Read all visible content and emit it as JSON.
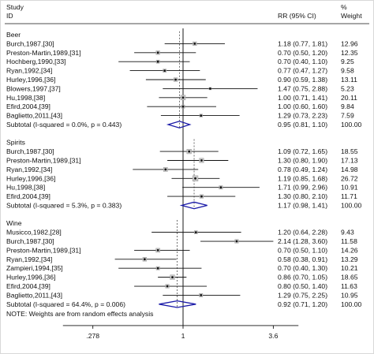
{
  "chart_data": {
    "type": "forest",
    "header": {
      "study_label": "Study",
      "id_label": "ID",
      "effect_label": "RR (95% CI)",
      "weight_label_top": "%",
      "weight_label": "Weight"
    },
    "x_ticks": [
      {
        "value": 0.278,
        "label": ".278"
      },
      {
        "value": 1,
        "label": "1"
      },
      {
        "value": 3.6,
        "label": "3.6"
      }
    ],
    "xlim": [
      0.17,
      5.5
    ],
    "scale": "log",
    "groups": [
      {
        "name": "Beer",
        "studies": [
          {
            "label": "Burch,1987,[30]",
            "rr": 1.18,
            "lo": 0.77,
            "hi": 1.81,
            "ci_text": "1.18 (0.77, 1.81)",
            "weight": 12.96,
            "weight_text": "12.96"
          },
          {
            "label": "Preston-Martin,1989,[31]",
            "rr": 0.7,
            "lo": 0.5,
            "hi": 1.2,
            "ci_text": "0.70 (0.50, 1.20)",
            "weight": 12.35,
            "weight_text": "12.35"
          },
          {
            "label": "Hochberg,1990,[33]",
            "rr": 0.7,
            "lo": 0.4,
            "hi": 1.1,
            "ci_text": "0.70 (0.40, 1.10)",
            "weight": 9.25,
            "weight_text": "9.25"
          },
          {
            "label": "Ryan,1992,[34]",
            "rr": 0.77,
            "lo": 0.47,
            "hi": 1.27,
            "ci_text": "0.77 (0.47, 1.27)",
            "weight": 9.58,
            "weight_text": "9.58"
          },
          {
            "label": "Hurley,1996,[36]",
            "rr": 0.9,
            "lo": 0.59,
            "hi": 1.38,
            "ci_text": "0.90 (0.59, 1.38)",
            "weight": 13.11,
            "weight_text": "13.11"
          },
          {
            "label": "Blowers,1997,[37]",
            "rr": 1.47,
            "lo": 0.75,
            "hi": 2.88,
            "ci_text": "1.47 (0.75, 2.88)",
            "weight": 5.23,
            "weight_text": "5.23"
          },
          {
            "label": "Hu,1998,[38]",
            "rr": 1.0,
            "lo": 0.71,
            "hi": 1.41,
            "ci_text": "1.00 (0.71, 1.41)",
            "weight": 20.11,
            "weight_text": "20.11"
          },
          {
            "label": "Efird,2004,[39]",
            "rr": 1.0,
            "lo": 0.6,
            "hi": 1.6,
            "ci_text": "1.00 (0.60, 1.60)",
            "weight": 9.84,
            "weight_text": "9.84"
          },
          {
            "label": "Baglietto,2011,[43]",
            "rr": 1.29,
            "lo": 0.73,
            "hi": 2.23,
            "ci_text": "1.29 (0.73, 2.23)",
            "weight": 7.59,
            "weight_text": "7.59"
          }
        ],
        "subtotal": {
          "label": "Subtotal  (I-squared = 0.0%, p = 0.443)",
          "rr": 0.95,
          "lo": 0.81,
          "hi": 1.1,
          "ci_text": "0.95 (0.81, 1.10)",
          "weight_text": "100.00"
        }
      },
      {
        "name": "Spirits",
        "studies": [
          {
            "label": "Burch,1987,[30]",
            "rr": 1.09,
            "lo": 0.72,
            "hi": 1.65,
            "ci_text": "1.09 (0.72, 1.65)",
            "weight": 18.55,
            "weight_text": "18.55"
          },
          {
            "label": "Preston-Martin,1989,[31]",
            "rr": 1.3,
            "lo": 0.8,
            "hi": 1.9,
            "ci_text": "1.30 (0.80, 1.90)",
            "weight": 17.13,
            "weight_text": "17.13"
          },
          {
            "label": "Ryan,1992,[34]",
            "rr": 0.78,
            "lo": 0.49,
            "hi": 1.24,
            "ci_text": "0.78 (0.49, 1.24)",
            "weight": 14.98,
            "weight_text": "14.98"
          },
          {
            "label": "Hurley,1996,[36]",
            "rr": 1.19,
            "lo": 0.85,
            "hi": 1.68,
            "ci_text": "1.19 (0.85, 1.68)",
            "weight": 26.72,
            "weight_text": "26.72"
          },
          {
            "label": "Hu,1998,[38]",
            "rr": 1.71,
            "lo": 0.99,
            "hi": 2.96,
            "ci_text": "1.71 (0.99, 2.96)",
            "weight": 10.91,
            "weight_text": "10.91"
          },
          {
            "label": "Efird,2004,[39]",
            "rr": 1.3,
            "lo": 0.8,
            "hi": 2.1,
            "ci_text": "1.30 (0.80, 2.10)",
            "weight": 11.71,
            "weight_text": "11.71"
          }
        ],
        "subtotal": {
          "label": "Subtotal  (I-squared = 5.3%, p = 0.383)",
          "rr": 1.17,
          "lo": 0.98,
          "hi": 1.41,
          "ci_text": "1.17 (0.98, 1.41)",
          "weight_text": "100.00"
        }
      },
      {
        "name": "Wine",
        "studies": [
          {
            "label": "Musicco,1982,[28]",
            "rr": 1.2,
            "lo": 0.64,
            "hi": 2.28,
            "ci_text": "1.20 (0.64, 2.28)",
            "weight": 9.43,
            "weight_text": "9.43"
          },
          {
            "label": "Burch,1987,[30]",
            "rr": 2.14,
            "lo": 1.28,
            "hi": 3.6,
            "ci_text": "2.14 (1.28, 3.60)",
            "weight": 11.58,
            "weight_text": "11.58"
          },
          {
            "label": "Preston-Martin,1989,[31]",
            "rr": 0.7,
            "lo": 0.5,
            "hi": 1.1,
            "ci_text": "0.70 (0.50, 1.10)",
            "weight": 14.26,
            "weight_text": "14.26"
          },
          {
            "label": "Ryan,1992,[34]",
            "rr": 0.58,
            "lo": 0.38,
            "hi": 0.91,
            "ci_text": "0.58 (0.38, 0.91)",
            "weight": 13.29,
            "weight_text": "13.29"
          },
          {
            "label": "Zampieri,1994,[35]",
            "rr": 0.7,
            "lo": 0.4,
            "hi": 1.3,
            "ci_text": "0.70 (0.40, 1.30)",
            "weight": 10.21,
            "weight_text": "10.21"
          },
          {
            "label": "Hurley,1996,[36]",
            "rr": 0.86,
            "lo": 0.7,
            "hi": 1.05,
            "ci_text": "0.86 (0.70, 1.05)",
            "weight": 18.65,
            "weight_text": "18.65"
          },
          {
            "label": "Efird,2004,[39]",
            "rr": 0.8,
            "lo": 0.5,
            "hi": 1.4,
            "ci_text": "0.80 (0.50, 1.40)",
            "weight": 11.63,
            "weight_text": "11.63"
          },
          {
            "label": "Baglietto,2011,[43]",
            "rr": 1.29,
            "lo": 0.75,
            "hi": 2.25,
            "ci_text": "1.29 (0.75, 2.25)",
            "weight": 10.95,
            "weight_text": "10.95"
          }
        ],
        "subtotal": {
          "label": "Subtotal  (I-squared = 64.4%, p = 0.006)",
          "rr": 0.92,
          "lo": 0.71,
          "hi": 1.2,
          "ci_text": "0.92 (0.71, 1.20)",
          "weight_text": "100.00"
        }
      }
    ],
    "note": "NOTE: Weights are from random effects analysis",
    "colors": {
      "ink": "#111111",
      "box_fill": "#c8c8c8",
      "box_stroke": "#9a9a9a",
      "diamond": "#1a1aa8",
      "reference_line": "#000000",
      "frame": "#d8d8d8"
    }
  }
}
